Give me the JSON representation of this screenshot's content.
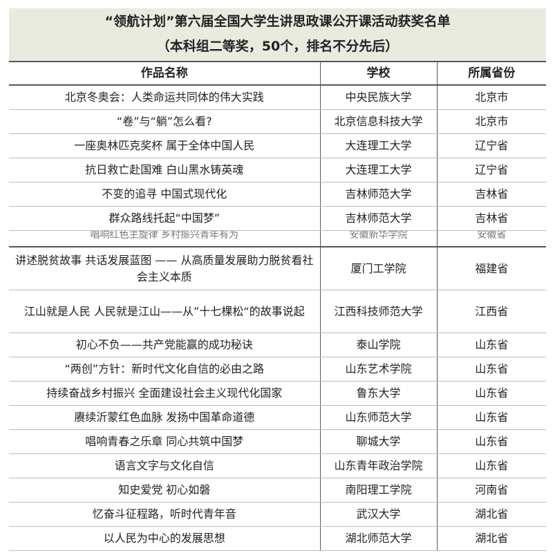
{
  "title": "“领航计划”第六届全国大学生讲思政课公开课活动获奖名单",
  "subtitle": "（本科组二等奖，50个，排名不分先后）",
  "headers": [
    "作品名称",
    "学校",
    "所属省份"
  ],
  "rows": [
    [
      "北京冬奥会：人类命运共同体的伟大实践",
      "中央民族大学",
      "北京市"
    ],
    [
      "“卷”与“躺”怎么看?",
      "北京信息科技大学",
      "北京市"
    ],
    [
      "一座奥林匹克奖杯 属于全体中国人民",
      "大连理工大学",
      "辽宁省"
    ],
    [
      "抗日救亡赴国难 白山黑水铸英魂",
      "大连理工大学",
      "辽宁省"
    ],
    [
      "不变的追寻 中国式现代化",
      "吉林师范大学",
      "吉林省"
    ],
    [
      "群众路线托起“中国梦”",
      "吉林师范大学",
      "吉林省"
    ],
    [
      "唱响红色主旋律 乡村振兴青年有为",
      "安徽新华学院",
      "安徽省"
    ],
    [
      "讲述脱贫故事 共话发展蓝图 —— 从高质量发展助力脱贫看社会主义本质",
      "厦门工学院",
      "福建省"
    ],
    [
      "江山就是人民 人民就是江山——从”十七棵松“的故事说起",
      "江西科技师范大学",
      "江西省"
    ],
    [
      "初心不负——共产党能赢的成功秘诀",
      "泰山学院",
      "山东省"
    ],
    [
      "“两创”方针：新时代文化自信的必由之路",
      "山东艺术学院",
      "山东省"
    ],
    [
      "持续奋战乡村振兴 全面建设社会主义现代化国家",
      "鲁东大学",
      "山东省"
    ],
    [
      "赓续沂蒙红色血脉 发扬中国革命道德",
      "山东师范大学",
      "山东省"
    ],
    [
      "唱响青春之乐章 同心共筑中国梦",
      "聊城大学",
      "山东省"
    ],
    [
      "语言文字与文化自信",
      "山东青年政治学院",
      "山东省"
    ],
    [
      "知史爱党 初心如磐",
      "南阳理工学院",
      "河南省"
    ],
    [
      "忆奋斗征程路，听时代青年音",
      "武汉大学",
      "湖北省"
    ],
    [
      "以人民为中心的发展思想",
      "湖北师范大学",
      "湖北省"
    ]
  ]
}
